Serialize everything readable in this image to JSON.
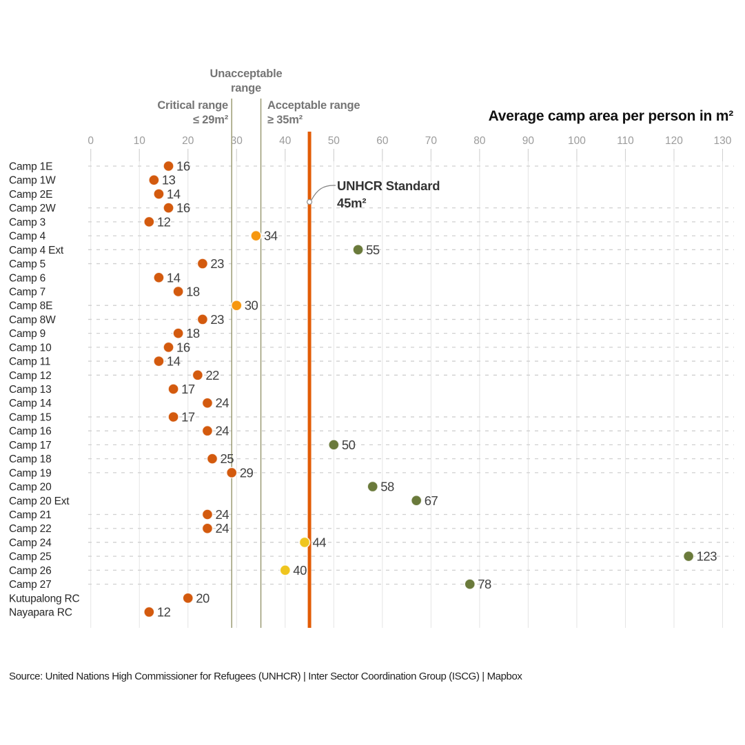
{
  "title": "Average camp area per person in m²",
  "annotations": {
    "unacceptable": "Unacceptable\nrange",
    "critical": "Critical range\n≤ 29m²",
    "acceptable": "Acceptable range\n≥ 35m²",
    "unhcr": "UNHCR Standard\n45m²"
  },
  "source": "Source: United Nations High Commissioner for Refugees (UNHCR) | Inter Sector Coordination Group (ISCG) | Mapbox",
  "chart_data": {
    "type": "scatter",
    "orientation": "horizontal-dot-plot",
    "xlabel": "Average camp area per person in m²",
    "x_ticks": [
      0,
      10,
      20,
      30,
      40,
      50,
      60,
      70,
      80,
      90,
      100,
      110,
      120,
      130
    ],
    "x_range": [
      0,
      130
    ],
    "grid": "vertical-solid-plus-row-dashed",
    "categories": [
      "Camp 1E",
      "Camp 1W",
      "Camp 2E",
      "Camp 2W",
      "Camp 3",
      "Camp 4",
      "Camp 4 Ext",
      "Camp 5",
      "Camp 6",
      "Camp 7",
      "Camp 8E",
      "Camp 8W",
      "Camp 9",
      "Camp 10",
      "Camp 11",
      "Camp 12",
      "Camp 13",
      "Camp 14",
      "Camp 15",
      "Camp 16",
      "Camp 17",
      "Camp 18",
      "Camp 19",
      "Camp 20",
      "Camp 20 Ext",
      "Camp 21",
      "Camp 22",
      "Camp 24",
      "Camp 25",
      "Camp 26",
      "Camp 27",
      "Kutupalong RC",
      "Nayapara RC"
    ],
    "values": [
      16,
      13,
      14,
      16,
      12,
      34,
      55,
      23,
      14,
      18,
      30,
      23,
      18,
      16,
      14,
      22,
      17,
      24,
      17,
      24,
      50,
      25,
      29,
      58,
      67,
      24,
      24,
      44,
      123,
      40,
      78,
      20,
      12
    ],
    "reference_lines": [
      {
        "value": 29,
        "meaning": "critical-range-upper-bound",
        "color": "#9A9A73"
      },
      {
        "value": 35,
        "meaning": "acceptable-range-lower-bound",
        "color": "#9A9A73"
      },
      {
        "value": 45,
        "meaning": "unhcr-standard",
        "color": "#E25C06"
      }
    ],
    "color_thresholds": [
      {
        "max": 29,
        "category": "critical",
        "color": "#D35A0E"
      },
      {
        "max": 34,
        "category": "unacceptable",
        "color": "#F6970F"
      },
      {
        "max": 44,
        "category": "acceptable",
        "color": "#EFC51F"
      },
      {
        "max": 999,
        "category": "meets-unhcr-standard",
        "color": "#6A7A3B"
      }
    ]
  },
  "layout_hints": {
    "rows_without_dashed_gridline": [
      1,
      2,
      8,
      9,
      16,
      17,
      23,
      24,
      31,
      32
    ],
    "colors": {
      "vertical_gridline": "#E4E4E4",
      "tick_mark": "#CFCFCF",
      "row_dash": "#CFCFCF",
      "tick_label": "#9B9B9B",
      "camp_label": "#262626",
      "value_label": "#404040"
    }
  }
}
